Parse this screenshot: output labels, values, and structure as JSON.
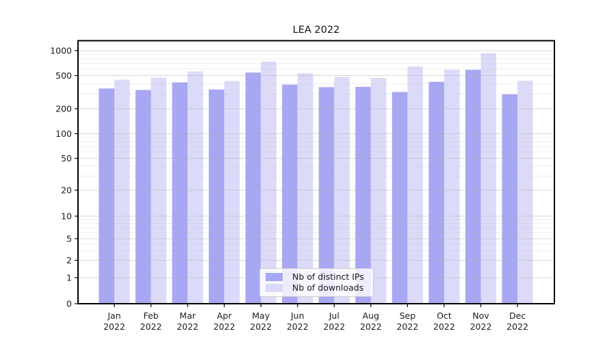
{
  "chart_data": {
    "type": "bar",
    "title": "LEA 2022",
    "months": [
      "Jan",
      "Feb",
      "Mar",
      "Apr",
      "May",
      "Jun",
      "Jul",
      "Aug",
      "Sep",
      "Oct",
      "Nov",
      "Dec"
    ],
    "year_label": "2022",
    "series": [
      {
        "key": "distinct-ips",
        "name": "Nb of distinct IPs",
        "color": "#a7a7f3",
        "values": [
          350,
          336,
          414,
          341,
          544,
          390,
          363,
          366,
          318,
          421,
          586,
          298
        ]
      },
      {
        "key": "downloads",
        "name": "Nb of downloads",
        "color": "#dbdbf9",
        "values": [
          447,
          472,
          560,
          431,
          738,
          535,
          482,
          468,
          648,
          589,
          931,
          434
        ]
      }
    ],
    "yscale": "symlog",
    "yticks": [
      0,
      1,
      2,
      5,
      10,
      20,
      50,
      100,
      200,
      500,
      1000
    ],
    "ylim": [
      0,
      1000
    ],
    "grid": "on",
    "legend_position": "lower center"
  }
}
